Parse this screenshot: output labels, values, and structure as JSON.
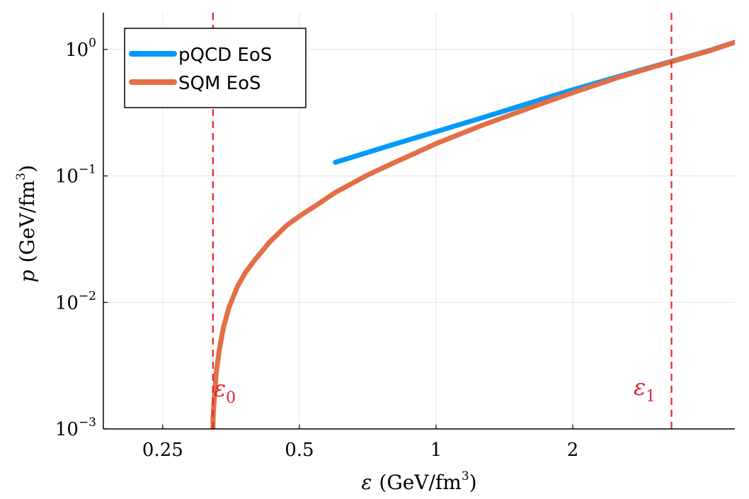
{
  "chart_data": {
    "type": "line",
    "x_scale": "log",
    "y_scale": "log",
    "xlim": [
      0.185,
      4.55
    ],
    "ylim": [
      0.001,
      1.95
    ],
    "grid": true,
    "xlabel": {
      "symbol": "ε",
      "unit": "(GeV/fm",
      "sup": "3",
      "close": ")"
    },
    "ylabel": {
      "symbol": "p",
      "unit": "(GeV/fm",
      "sup": "3",
      "close": ")"
    },
    "x_ticks": [
      {
        "value": 0.25,
        "label": "0.25"
      },
      {
        "value": 0.5,
        "label": "0.5"
      },
      {
        "value": 1,
        "label": "1"
      },
      {
        "value": 2,
        "label": "2"
      }
    ],
    "y_ticks": [
      {
        "value": 0.001,
        "base": "10",
        "exp": "−3"
      },
      {
        "value": 0.01,
        "base": "10",
        "exp": "−2"
      },
      {
        "value": 0.1,
        "base": "10",
        "exp": "−1"
      },
      {
        "value": 1,
        "base": "10",
        "exp": "0"
      }
    ],
    "series": [
      {
        "name": "pQCD EoS",
        "color": "#009AFA",
        "x": [
          0.6,
          0.8,
          1.0,
          1.25,
          1.6,
          2.0,
          2.5,
          3.0,
          3.5,
          4.0,
          4.55
        ],
        "y": [
          0.128,
          0.176,
          0.224,
          0.285,
          0.375,
          0.48,
          0.605,
          0.73,
          0.855,
          0.98,
          1.14
        ]
      },
      {
        "name": "SQM EoS",
        "color": "#E26F46",
        "x": [
          0.3225,
          0.323,
          0.325,
          0.328,
          0.333,
          0.34,
          0.35,
          0.365,
          0.38,
          0.4,
          0.43,
          0.47,
          0.5,
          0.55,
          0.6,
          0.7,
          0.8,
          1.0,
          1.25,
          1.5,
          1.75,
          2.0,
          2.5,
          3.0,
          3.5,
          4.0,
          4.55
        ],
        "y": [
          0.001,
          0.0013,
          0.0018,
          0.0028,
          0.0042,
          0.0063,
          0.0092,
          0.0133,
          0.0172,
          0.022,
          0.03,
          0.041,
          0.048,
          0.06,
          0.074,
          0.1,
          0.125,
          0.18,
          0.248,
          0.315,
          0.385,
          0.455,
          0.595,
          0.725,
          0.85,
          0.975,
          1.14
        ]
      }
    ],
    "vlines": [
      {
        "x": 0.3225,
        "color": "#E3242B",
        "label": "ε",
        "sub": "0"
      },
      {
        "x": 3.3,
        "color": "#E3242B",
        "label": "ε",
        "sub": "1"
      }
    ],
    "legend": {
      "position": "top-left",
      "entries": [
        "pQCD EoS",
        "SQM EoS"
      ]
    }
  }
}
